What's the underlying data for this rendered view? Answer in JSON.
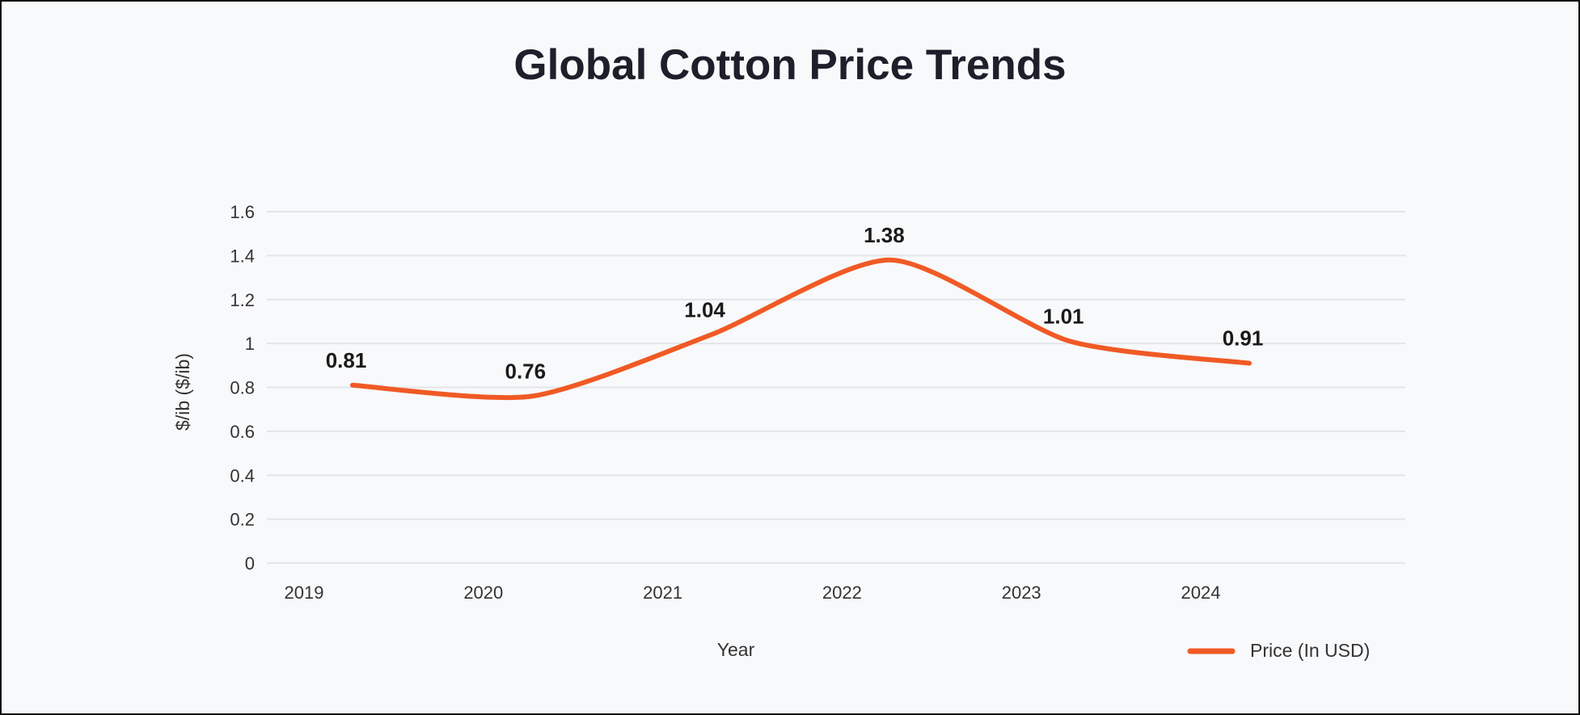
{
  "chart_data": {
    "type": "line",
    "title": "Global Cotton Price Trends",
    "xlabel": "Year",
    "ylabel": "$/ib ($/ib)",
    "categories": [
      "2019",
      "2020",
      "2021",
      "2022",
      "2023",
      "2024"
    ],
    "series": [
      {
        "name": "Price (In USD)",
        "values": [
          0.81,
          0.76,
          1.04,
          1.38,
          1.01,
          0.91
        ],
        "color": "#f05a24"
      }
    ],
    "data_labels": [
      "0.81",
      "0.76",
      "1.04",
      "1.38",
      "1.01",
      "0.91"
    ],
    "ylim": [
      0,
      1.6
    ],
    "yticks": [
      "0",
      "0.2",
      "0.4",
      "0.6",
      "0.8",
      "1",
      "1.2",
      "1.4",
      "1.6"
    ],
    "grid": true,
    "legend_position": "bottom-right",
    "smooth": true
  }
}
